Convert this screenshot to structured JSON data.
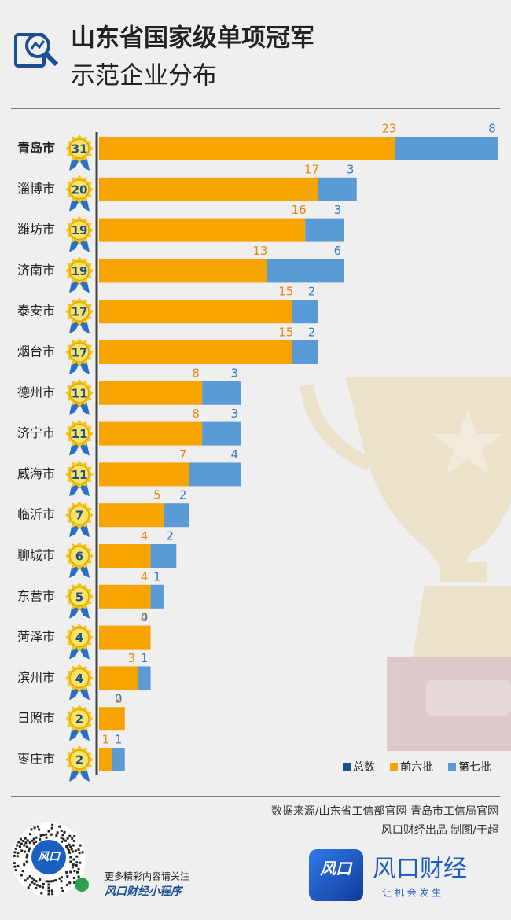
{
  "chart_data": {
    "type": "bar",
    "title": "山东省国家级单项冠军",
    "subtitle": "示范企业分布",
    "categories": [
      "青岛市",
      "淄博市",
      "潍坊市",
      "济南市",
      "泰安市",
      "烟台市",
      "德州市",
      "济宁市",
      "威海市",
      "临沂市",
      "聊城市",
      "东营市",
      "菏泽市",
      "滨州市",
      "日照市",
      "枣庄市"
    ],
    "series": [
      {
        "name": "总数",
        "color": "#1b4f8f",
        "values": [
          31,
          20,
          19,
          19,
          17,
          17,
          11,
          11,
          11,
          7,
          6,
          5,
          4,
          4,
          2,
          2
        ]
      },
      {
        "name": "前六批",
        "color": "#f7a400",
        "values": [
          23,
          17,
          16,
          13,
          15,
          15,
          8,
          8,
          7,
          5,
          4,
          4,
          4,
          3,
          2,
          1
        ]
      },
      {
        "name": "第七批",
        "color": "#5b9bd5",
        "values": [
          8,
          3,
          3,
          6,
          2,
          2,
          3,
          3,
          4,
          2,
          2,
          1,
          0,
          1,
          0,
          1
        ]
      }
    ]
  },
  "footer": {
    "source": "数据来源/山东省工信部官网 青岛市工信局官网",
    "credit": "风口财经出品 制图/于超",
    "follow": "更多精彩内容请关注",
    "mini_program": "风口财经小程序",
    "qr_logo": "风口",
    "logo_icon": "风口",
    "brand": "风口财经",
    "slogan": "让 机 会 发 生"
  }
}
